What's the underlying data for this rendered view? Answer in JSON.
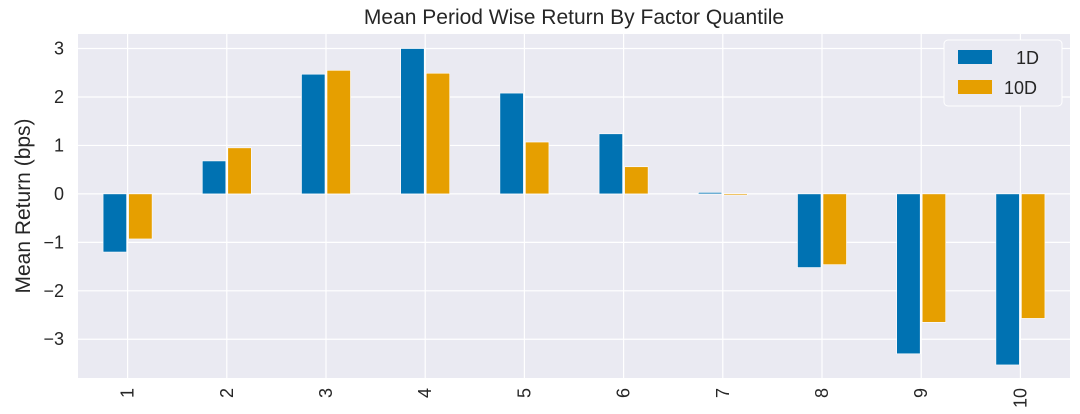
{
  "chart_data": {
    "type": "bar",
    "title": "Mean Period Wise Return By Factor Quantile",
    "xlabel": "",
    "ylabel": "Mean Return (bps)",
    "categories": [
      "1",
      "2",
      "3",
      "4",
      "5",
      "6",
      "7",
      "8",
      "9",
      "10"
    ],
    "series": [
      {
        "name": "1D",
        "color": "#0072b2",
        "values": [
          -1.2,
          0.68,
          2.47,
          3.0,
          2.08,
          1.24,
          0.03,
          -1.52,
          -3.3,
          -3.53
        ]
      },
      {
        "name": "10D",
        "color": "#e69f00",
        "values": [
          -0.93,
          0.95,
          2.55,
          2.49,
          1.07,
          0.56,
          -0.02,
          -1.46,
          -2.65,
          -2.57
        ]
      }
    ],
    "ylim": [
      -3.8,
      3.3
    ],
    "yticks": [
      3,
      2,
      1,
      0,
      -1,
      -2,
      -3
    ],
    "ytick_labels": [
      "3",
      "2",
      "1",
      "0",
      "−1",
      "−2",
      "−3"
    ],
    "grid": true,
    "legend_position": "top-right",
    "background_color": "#eaeaf2",
    "grid_color": "#ffffff"
  }
}
